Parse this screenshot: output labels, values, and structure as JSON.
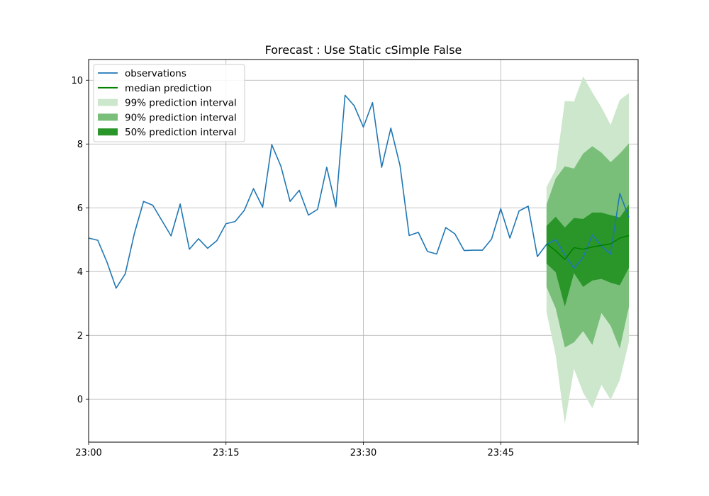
{
  "chart_data": {
    "type": "line",
    "title": "Forecast : Use Static cSimple False",
    "xlabel": "",
    "ylabel": "",
    "x_unit": "minutes",
    "x_ticks": [
      {
        "value": "23:00",
        "label": "23:00"
      },
      {
        "value": "23:15",
        "label": "23:15"
      },
      {
        "value": "23:30",
        "label": "23:30"
      },
      {
        "value": "23:45",
        "label": "23:45"
      },
      {
        "value": "00:00",
        "label": ""
      }
    ],
    "y_ticks": [
      0,
      2,
      4,
      6,
      8,
      10
    ],
    "xlim": [
      "23:00",
      "00:00"
    ],
    "ylim": [
      -1.35,
      10.65
    ],
    "grid": true,
    "legend_position": "top-left",
    "colors": {
      "observations": "#1f77b4",
      "median": "#008000",
      "band_99": "#cce7cc",
      "band_90": "#79bf79",
      "band_50": "#2a962a"
    },
    "series": [
      {
        "name": "observations",
        "kind": "line",
        "color": "#1f77b4",
        "points": [
          [
            "23:00",
            5.05
          ],
          [
            "23:01",
            4.98
          ],
          [
            "23:02",
            4.3
          ],
          [
            "23:03",
            3.48
          ],
          [
            "23:04",
            3.93
          ],
          [
            "23:05",
            5.2
          ],
          [
            "23:06",
            6.2
          ],
          [
            "23:07",
            6.08
          ],
          [
            "23:08",
            5.6
          ],
          [
            "23:09",
            5.12
          ],
          [
            "23:10",
            6.12
          ],
          [
            "23:11",
            4.7
          ],
          [
            "23:12",
            5.03
          ],
          [
            "23:13",
            4.73
          ],
          [
            "23:14",
            4.97
          ],
          [
            "23:15",
            5.5
          ],
          [
            "23:16",
            5.57
          ],
          [
            "23:17",
            5.92
          ],
          [
            "23:18",
            6.6
          ],
          [
            "23:19",
            6.02
          ],
          [
            "23:20",
            7.98
          ],
          [
            "23:21",
            7.3
          ],
          [
            "23:22",
            6.2
          ],
          [
            "23:23",
            6.55
          ],
          [
            "23:24",
            5.77
          ],
          [
            "23:25",
            5.95
          ],
          [
            "23:26",
            7.27
          ],
          [
            "23:27",
            6.03
          ],
          [
            "23:28",
            9.53
          ],
          [
            "23:29",
            9.2
          ],
          [
            "23:30",
            8.53
          ],
          [
            "23:31",
            9.3
          ],
          [
            "23:32",
            7.27
          ],
          [
            "23:33",
            8.5
          ],
          [
            "23:34",
            7.33
          ],
          [
            "23:35",
            5.13
          ],
          [
            "23:36",
            5.23
          ],
          [
            "23:37",
            4.63
          ],
          [
            "23:38",
            4.55
          ],
          [
            "23:39",
            5.38
          ],
          [
            "23:40",
            5.18
          ],
          [
            "23:41",
            4.66
          ],
          [
            "23:42",
            4.67
          ],
          [
            "23:43",
            4.67
          ],
          [
            "23:44",
            5.02
          ],
          [
            "23:45",
            5.97
          ],
          [
            "23:46",
            5.05
          ],
          [
            "23:47",
            5.9
          ],
          [
            "23:48",
            6.05
          ],
          [
            "23:49",
            4.47
          ],
          [
            "23:50",
            4.85
          ],
          [
            "23:51",
            5.0
          ],
          [
            "23:52",
            4.53
          ],
          [
            "23:53",
            4.1
          ],
          [
            "23:54",
            4.45
          ],
          [
            "23:55",
            5.15
          ],
          [
            "23:56",
            4.8
          ],
          [
            "23:57",
            4.55
          ],
          [
            "23:58",
            6.45
          ],
          [
            "23:59",
            5.7
          ]
        ]
      },
      {
        "name": "median prediction",
        "kind": "line",
        "color": "#008000",
        "points": [
          [
            "23:50",
            4.88
          ],
          [
            "23:51",
            4.65
          ],
          [
            "23:52",
            4.38
          ],
          [
            "23:53",
            4.75
          ],
          [
            "23:54",
            4.7
          ],
          [
            "23:55",
            4.77
          ],
          [
            "23:56",
            4.82
          ],
          [
            "23:57",
            4.87
          ],
          [
            "23:58",
            5.05
          ],
          [
            "23:59",
            5.13
          ]
        ]
      },
      {
        "name": "99% prediction interval",
        "kind": "band",
        "color": "#cce7cc",
        "x": [
          "23:50",
          "23:51",
          "23:52",
          "23:53",
          "23:54",
          "23:55",
          "23:56",
          "23:57",
          "23:58",
          "23:59"
        ],
        "lower": [
          2.73,
          1.38,
          -0.77,
          0.95,
          0.2,
          -0.28,
          0.45,
          -0.02,
          0.6,
          1.8
        ],
        "upper": [
          6.65,
          7.2,
          9.35,
          9.33,
          10.12,
          9.62,
          9.15,
          8.6,
          9.38,
          9.6
        ]
      },
      {
        "name": "90% prediction interval",
        "kind": "band",
        "color": "#79bf79",
        "x": [
          "23:50",
          "23:51",
          "23:52",
          "23:53",
          "23:54",
          "23:55",
          "23:56",
          "23:57",
          "23:58",
          "23:59"
        ],
        "lower": [
          3.52,
          2.85,
          1.62,
          1.78,
          2.13,
          1.7,
          2.7,
          2.3,
          1.58,
          2.9
        ],
        "upper": [
          6.1,
          6.92,
          7.3,
          7.23,
          7.7,
          7.93,
          7.73,
          7.43,
          7.7,
          8.02
        ]
      },
      {
        "name": "50% prediction interval",
        "kind": "band",
        "color": "#2a962a",
        "x": [
          "23:50",
          "23:51",
          "23:52",
          "23:53",
          "23:54",
          "23:55",
          "23:56",
          "23:57",
          "23:58",
          "23:59"
        ],
        "lower": [
          4.25,
          3.98,
          2.9,
          3.95,
          3.52,
          3.72,
          3.77,
          3.65,
          3.57,
          4.12
        ],
        "upper": [
          5.43,
          5.72,
          5.38,
          5.68,
          5.65,
          5.85,
          5.85,
          5.77,
          5.7,
          6.1
        ]
      }
    ],
    "legend": [
      {
        "label": "observations",
        "kind": "line",
        "color": "#1f77b4"
      },
      {
        "label": "median prediction",
        "kind": "line",
        "color": "#008000"
      },
      {
        "label": "99% prediction interval",
        "kind": "patch",
        "color": "#cce7cc"
      },
      {
        "label": "90% prediction interval",
        "kind": "patch",
        "color": "#79bf79"
      },
      {
        "label": "50% prediction interval",
        "kind": "patch",
        "color": "#2a962a"
      }
    ]
  }
}
